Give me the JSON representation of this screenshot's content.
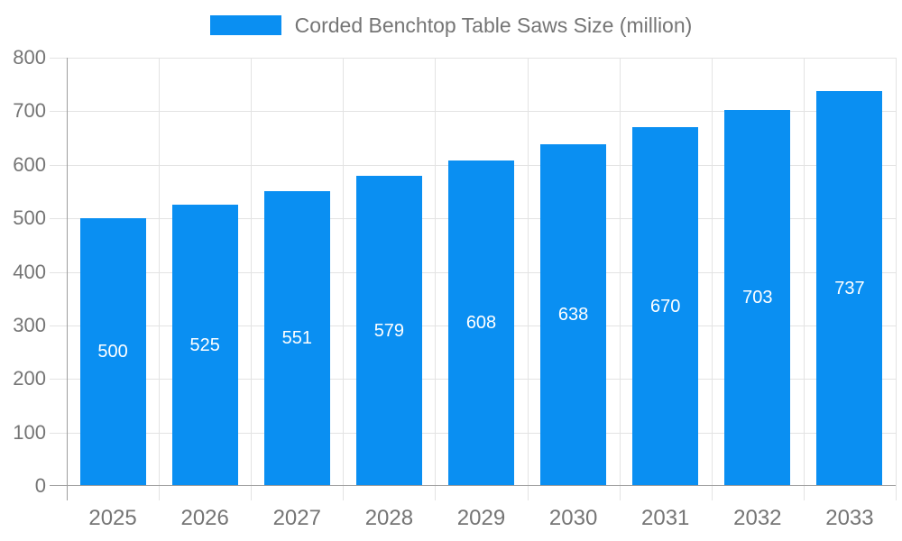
{
  "chart_data": {
    "type": "bar",
    "title": "Corded Benchtop Table Saws Size (million)",
    "categories": [
      "2025",
      "2026",
      "2027",
      "2028",
      "2029",
      "2030",
      "2031",
      "2032",
      "2033"
    ],
    "series": [
      {
        "name": "Corded Benchtop Table Saws Size (million)",
        "values": [
          500,
          525,
          551,
          579,
          608,
          638,
          670,
          703,
          737
        ]
      }
    ],
    "xlabel": "",
    "ylabel": "",
    "ylim": [
      0,
      800
    ],
    "yticks": [
      0,
      100,
      200,
      300,
      400,
      500,
      600,
      700,
      800
    ],
    "grid": true,
    "legend_position": "top-center",
    "data_labels": {
      "visible": true,
      "position": "center-of-bar"
    },
    "colors": {
      "bar": "#0a8ff2",
      "grid": "#e3e3e3",
      "axis": "#9e9e9e",
      "axis_label": "#757575",
      "legend_text": "#757575",
      "bar_label": "#ffffff",
      "background": "#ffffff"
    }
  }
}
